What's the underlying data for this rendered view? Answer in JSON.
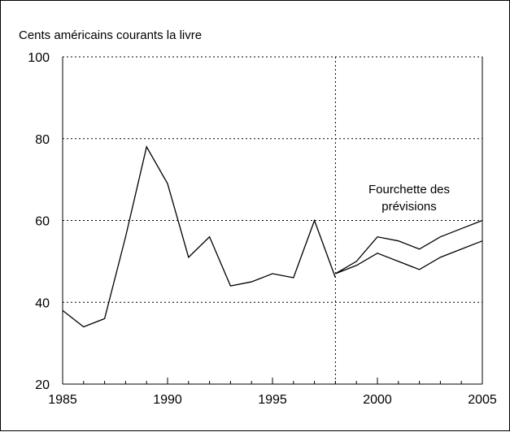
{
  "chart_data": {
    "type": "line",
    "ylabel": "Cents américains courants la livre",
    "xlim": [
      1985,
      2005
    ],
    "ylim": [
      20,
      100
    ],
    "x_ticks": [
      "1985",
      "1990",
      "1995",
      "2000",
      "2005"
    ],
    "y_ticks": [
      "20",
      "40",
      "60",
      "80",
      "100"
    ],
    "grid": "horizontal-dotted",
    "annotation": {
      "line1": "Fourchette des",
      "line2": "prévisions"
    },
    "forecast_start": 1998,
    "series": [
      {
        "x": [
          1985,
          1986,
          1987,
          1988,
          1989,
          1990,
          1991,
          1992,
          1993,
          1994,
          1995,
          1996,
          1997,
          1998
        ],
        "values": [
          38,
          34,
          36,
          56,
          78,
          69,
          51,
          56,
          44,
          45,
          47,
          46,
          60,
          46
        ]
      },
      {
        "x": [
          1998,
          1999,
          2000,
          2001,
          2002,
          2003,
          2004,
          2005
        ],
        "values": [
          47,
          50,
          56,
          55,
          53,
          56,
          58,
          60
        ]
      },
      {
        "x": [
          1998,
          1999,
          2000,
          2001,
          2002,
          2003,
          2004,
          2005
        ],
        "values": [
          47,
          49,
          52,
          50,
          48,
          51,
          53,
          55
        ]
      }
    ],
    "line_color": "#000000"
  }
}
